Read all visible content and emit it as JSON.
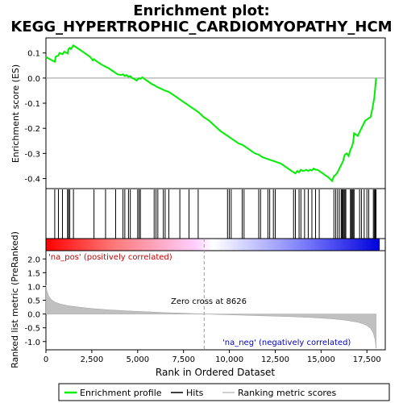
{
  "chart_data": {
    "type": "line",
    "title": "Enrichment plot:\nKEGG_HYPERTROPHIC_CARDIOMYOPATHY_HCM",
    "xlabel": "Rank in Ordered Dataset",
    "x_ticks": [
      "0",
      "2,500",
      "5,000",
      "7,500",
      "10,000",
      "12,500",
      "15,000",
      "17,500"
    ],
    "x_tick_values": [
      0,
      2500,
      5000,
      7500,
      10000,
      12500,
      15000,
      17500
    ],
    "xlim": [
      0,
      18500
    ],
    "es_panel": {
      "ylabel": "Enrichment score (ES)",
      "ylim": [
        -0.44,
        0.16
      ],
      "y_ticks": [
        "0.1",
        "0.0",
        "-0.1",
        "-0.2",
        "-0.3",
        "-0.4"
      ],
      "y_tick_values": [
        0.1,
        0.0,
        -0.1,
        -0.2,
        -0.3,
        -0.4
      ],
      "series": [
        {
          "name": "Enrichment profile",
          "color": "#00ee00",
          "x": [
            0,
            90,
            480,
            530,
            680,
            740,
            900,
            1000,
            1180,
            1230,
            1300,
            1360,
            1500,
            1600,
            1800,
            2000,
            2200,
            2400,
            2560,
            2620,
            2800,
            3000,
            3250,
            3400,
            3600,
            3800,
            3900,
            4100,
            4200,
            4300,
            4400,
            4500,
            4600,
            4700,
            4800,
            4950,
            5000,
            5080,
            5150,
            5250,
            5400,
            5600,
            5800,
            5950,
            6050,
            6200,
            6350,
            6500,
            6700,
            6900,
            7100,
            7400,
            7700,
            8000,
            8300,
            8600,
            8900,
            9200,
            9500,
            9800,
            10000,
            10100,
            10300,
            10500,
            10700,
            10800,
            11000,
            11200,
            11400,
            11600,
            11800,
            12000,
            12200,
            12400,
            12600,
            12800,
            13000,
            13200,
            13400,
            13500,
            13600,
            13700,
            13800,
            13900,
            14000,
            14100,
            14200,
            14300,
            14400,
            14500,
            14600,
            14700,
            14800,
            14900,
            15000,
            15200,
            15400,
            15600,
            15700,
            15800,
            15900,
            16000,
            16100,
            16200,
            16250,
            16300,
            16400,
            16500,
            16600,
            16700,
            16750,
            16800,
            16900,
            17000,
            17100,
            17200,
            17300,
            17400,
            17500,
            17600,
            17700,
            17800,
            17850,
            17900,
            17950,
            18000
          ],
          "y": [
            0.085,
            0.08,
            0.065,
            0.085,
            0.09,
            0.1,
            0.095,
            0.105,
            0.098,
            0.115,
            0.12,
            0.115,
            0.13,
            0.125,
            0.115,
            0.105,
            0.095,
            0.085,
            0.07,
            0.075,
            0.065,
            0.055,
            0.045,
            0.04,
            0.03,
            0.02,
            0.015,
            0.012,
            0.015,
            0.008,
            0.012,
            0.005,
            0.008,
            0.0,
            -0.003,
            -0.01,
            -0.005,
            0.0,
            -0.003,
            0.003,
            -0.005,
            -0.015,
            -0.025,
            -0.03,
            -0.035,
            -0.04,
            -0.045,
            -0.05,
            -0.055,
            -0.065,
            -0.075,
            -0.09,
            -0.105,
            -0.12,
            -0.135,
            -0.155,
            -0.17,
            -0.19,
            -0.21,
            -0.225,
            -0.235,
            -0.24,
            -0.25,
            -0.26,
            -0.265,
            -0.27,
            -0.28,
            -0.29,
            -0.3,
            -0.305,
            -0.315,
            -0.32,
            -0.325,
            -0.33,
            -0.335,
            -0.34,
            -0.35,
            -0.36,
            -0.37,
            -0.375,
            -0.38,
            -0.37,
            -0.375,
            -0.365,
            -0.37,
            -0.368,
            -0.365,
            -0.37,
            -0.365,
            -0.368,
            -0.36,
            -0.365,
            -0.365,
            -0.37,
            -0.375,
            -0.385,
            -0.395,
            -0.41,
            -0.39,
            -0.385,
            -0.375,
            -0.36,
            -0.345,
            -0.33,
            -0.315,
            -0.305,
            -0.3,
            -0.31,
            -0.285,
            -0.27,
            -0.255,
            -0.22,
            -0.225,
            -0.23,
            -0.215,
            -0.2,
            -0.185,
            -0.17,
            -0.165,
            -0.16,
            -0.155,
            -0.12,
            -0.1,
            -0.08,
            -0.04,
            0.0
          ]
        }
      ]
    },
    "hits_panel": {
      "legend_label": "Hits",
      "hit_ranks": [
        480,
        680,
        900,
        1180,
        1230,
        1300,
        1500,
        2620,
        3250,
        3800,
        4200,
        4300,
        4500,
        4600,
        5000,
        5080,
        5150,
        5900,
        6000,
        6100,
        6400,
        6500,
        6700,
        7300,
        7800,
        8300,
        9900,
        10000,
        10100,
        10700,
        10800,
        11600,
        11700,
        12100,
        12200,
        12400,
        12500,
        13500,
        13600,
        13800,
        13900,
        14100,
        14300,
        14500,
        14700,
        14900,
        15700,
        15800,
        15900,
        16000,
        16100,
        16150,
        16200,
        16250,
        16300,
        16350,
        16600,
        16650,
        16700,
        16750,
        16800,
        17100,
        17200,
        17350,
        17500,
        17600,
        17850,
        17900,
        17950,
        18000
      ]
    },
    "metric_panel": {
      "ylabel": "Ranked list metric (PreRanked)",
      "ylim": [
        -1.3,
        2.3
      ],
      "y_ticks": [
        "2.0",
        "1.5",
        "1.0",
        "0.5",
        "0.0",
        "-0.5",
        "-1.0"
      ],
      "y_tick_values": [
        2.0,
        1.5,
        1.0,
        0.5,
        0.0,
        -0.5,
        -1.0
      ],
      "legend_label": "Ranking metric scores",
      "x": [
        0,
        50,
        150,
        300,
        500,
        800,
        1200,
        1800,
        2500,
        3500,
        4500,
        5500,
        6500,
        7500,
        8626,
        9500,
        10500,
        11500,
        12500,
        13500,
        14500,
        15500,
        16000,
        16500,
        17000,
        17300,
        17500,
        17700,
        17850,
        17950,
        18000
      ],
      "values": [
        1.05,
        0.85,
        0.65,
        0.52,
        0.43,
        0.36,
        0.3,
        0.25,
        0.2,
        0.15,
        0.11,
        0.08,
        0.05,
        0.03,
        0.0,
        -0.02,
        -0.04,
        -0.06,
        -0.08,
        -0.1,
        -0.13,
        -0.17,
        -0.2,
        -0.24,
        -0.3,
        -0.36,
        -0.42,
        -0.52,
        -0.7,
        -0.95,
        -1.25
      ],
      "zero_cross_rank": 8626,
      "zero_cross_label": "Zero cross at 8626",
      "pos_label": "'na_pos' (positively correlated)",
      "neg_label": "'na_neg' (negatively correlated)"
    },
    "legend": {
      "placement": "bottom",
      "items": [
        "Enrichment profile",
        "Hits",
        "Ranking metric scores"
      ]
    },
    "colors": {
      "profile": "#00ee00",
      "pos_end": "#ff0000",
      "neg_end": "#0000ff",
      "metric_fill": "#c0c0c0"
    }
  }
}
